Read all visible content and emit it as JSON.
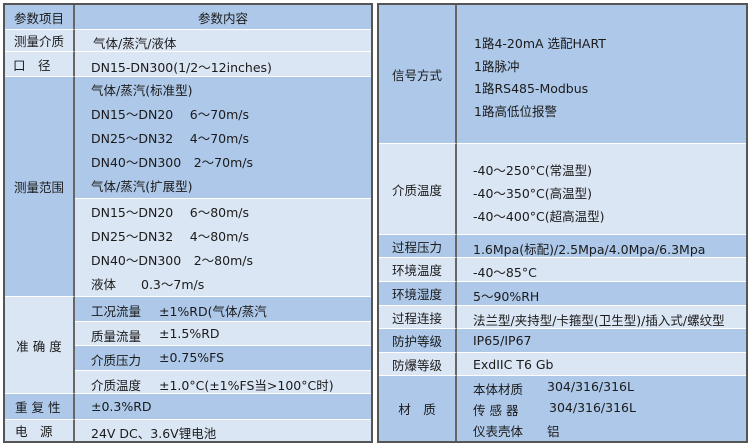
{
  "left_table": {
    "header": {
      "item": "参数项目",
      "content": "参数内容"
    },
    "medium": {
      "label": "测量介质",
      "value": "气体/蒸汽/液体"
    },
    "diameter": {
      "label": "口　径",
      "value": "DN15-DN300(1/2～12inches)"
    },
    "range": {
      "label": "测量范围",
      "lines": [
        "气体/蒸汽(标准型)",
        "DN15～DN20　 6～70m/s",
        "DN25～DN32　 4～70m/s",
        "DN40～DN300　2～70m/s",
        "气体/蒸汽(扩展型)",
        "DN15～DN20　 6～80m/s",
        "DN25～DN32　 4～80m/s",
        "DN40～DN300　2～80m/s",
        "液体　　0.3～7m/s"
      ]
    },
    "accuracy": {
      "label": "准 确 度",
      "rows": [
        {
          "name": "工况流量",
          "value": "±1%RD(气体/蒸汽"
        },
        {
          "name": "质量流量",
          "value": "±1.5%RD"
        },
        {
          "name": "介质压力",
          "value": "±0.75%FS"
        },
        {
          "name": "介质温度",
          "value": "±1.0°C(±1%FS当>100°C时)"
        }
      ]
    },
    "repeatability": {
      "label": "重 复 性",
      "value": "±0.3%RD"
    },
    "power": {
      "label": "电　源",
      "value": "24V DC、3.6V锂电池"
    }
  },
  "right_table": {
    "signal": {
      "label": "信号方式",
      "lines": [
        "1路4-20mA 选配HART",
        "1路脉冲",
        "1路RS485-Modbus",
        "1路高低位报警"
      ]
    },
    "medium_temp": {
      "label": "介质温度",
      "lines": [
        "-40～250°C(常温型)",
        "-40～350°C(高温型)",
        "-40～400°C(超高温型)"
      ]
    },
    "process_pressure": {
      "label": "过程压力",
      "value": "1.6Mpa(标配)/2.5Mpa/4.0Mpa/6.3Mpa"
    },
    "ambient_temp": {
      "label": "环境温度",
      "value": "-40～85°C"
    },
    "ambient_humidity": {
      "label": "环境湿度",
      "value": "5～90%RH"
    },
    "connection": {
      "label": "过程连接",
      "value": "法兰型/夹持型/卡箍型(卫生型)/插入式/螺纹型"
    },
    "protection": {
      "label": "防护等级",
      "value": "IP65/IP67"
    },
    "explosion": {
      "label": "防爆等级",
      "value": "ExdIIC T6 Gb"
    },
    "material": {
      "label": "材　质",
      "rows": [
        {
          "name": "本体材质",
          "value": "304/316/316L"
        },
        {
          "name": "传 感 器",
          "value": "304/316/316L"
        },
        {
          "name": "仪表壳体",
          "value": "铝"
        }
      ]
    }
  },
  "colors": {
    "dark_row": "#adc8e8",
    "light_row": "#dbe6f4",
    "border": "#555555"
  }
}
